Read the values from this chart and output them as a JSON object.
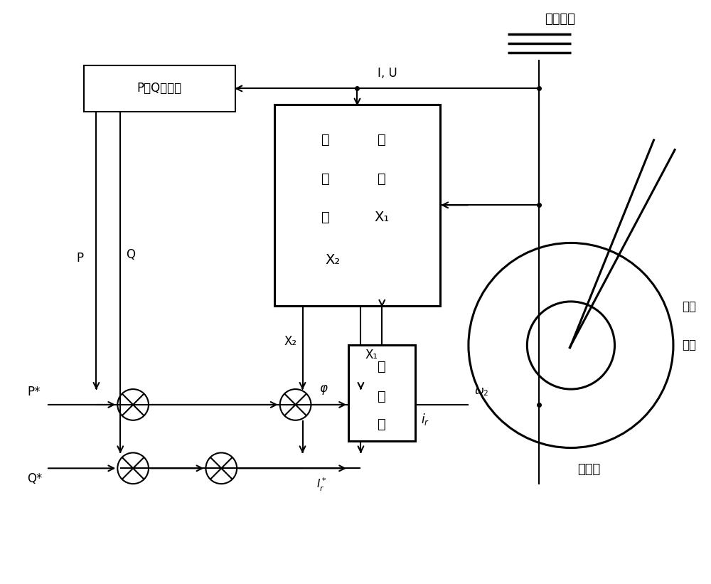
{
  "bg_color": "#ffffff",
  "san_xiang": "三相电网",
  "fa_dian_ji": "发电机",
  "zhuan_zi_1": "转子",
  "zhuan_zi_2": "位置",
  "pq_text": "P、Q値计算",
  "dz_r1c1": "定",
  "dz_r1c2": "子",
  "dz_r2c1": "磁",
  "dz_r2c2": "锁",
  "dz_r3c1": "及",
  "dz_r3c2": "X₁",
  "dz_r4": "X₂",
  "blq_1": "变",
  "blq_2": "流",
  "blq_3": "器"
}
